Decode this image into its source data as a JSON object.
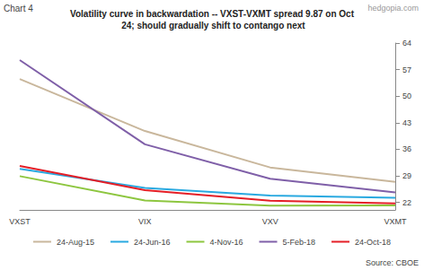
{
  "chart_data": {
    "type": "line",
    "title": "Volatility curve in backwardation -- VXST-VXMT spread 9.87 on Oct 24; should gradually shift to contango next",
    "annotations": [
      "Chart 4",
      "hedgopia.com",
      "Source: CBOE"
    ],
    "categories": [
      "VXST",
      "VIX",
      "VXV",
      "VXMT"
    ],
    "series": [
      {
        "name": "24-Aug-15",
        "color": "#c9b79c",
        "values": [
          54.5,
          40.8,
          31.2,
          27.4
        ]
      },
      {
        "name": "24-Jun-16",
        "color": "#29a9e0",
        "values": [
          30.8,
          25.8,
          23.8,
          23.2
        ]
      },
      {
        "name": "4-Nov-16",
        "color": "#8dc63f",
        "values": [
          28.9,
          22.5,
          21.1,
          21.2
        ]
      },
      {
        "name": "5-Feb-18",
        "color": "#7f5fa8",
        "values": [
          59.5,
          37.3,
          28.2,
          24.6
        ]
      },
      {
        "name": "24-Oct-18",
        "color": "#e41e26",
        "values": [
          31.6,
          25.2,
          22.4,
          21.7
        ]
      }
    ],
    "ylim": [
      20,
      64
    ],
    "yticks": [
      22,
      29,
      36,
      43,
      50,
      57,
      64
    ],
    "grid": false,
    "legend": "bottom",
    "marker": "none"
  }
}
